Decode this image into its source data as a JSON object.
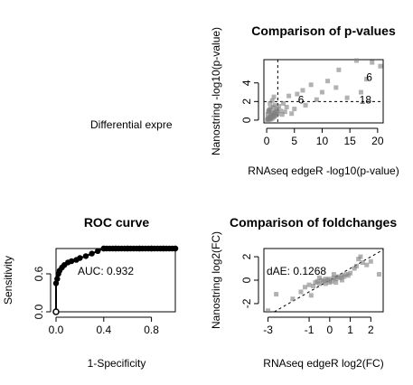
{
  "panels": {
    "text_panel": {
      "label": "Differential expre"
    },
    "pvalues": {
      "title": "Comparison of p-values",
      "xlabel": "RNAseq edgeR -log10(p-value)",
      "ylabel": "Nanostring -log10(p-value)",
      "annotations": [
        {
          "text": "6",
          "x": 18.5,
          "y": 4.6
        },
        {
          "text": "6",
          "x": 6.2,
          "y": 2.2
        },
        {
          "text": "18",
          "x": 17.8,
          "y": 2.2
        }
      ]
    },
    "roc": {
      "title": "ROC curve",
      "xlabel": "1-Specificity",
      "ylabel": "Sensitivity",
      "auc_label": "AUC: 0.932"
    },
    "foldchanges": {
      "title": "Comparison of foldchanges",
      "xlabel": "RNAseq edgeR log2(FC)",
      "ylabel": "Nanostring log2(FC)",
      "annotation": "dAE: 0.1268"
    }
  },
  "chart_data": [
    {
      "type": "scatter",
      "title": "Comparison of p-values",
      "xlabel": "RNAseq edgeR -log10(p-value)",
      "ylabel": "Nanostring -log10(p-value)",
      "xlim": [
        -0.5,
        21
      ],
      "ylim": [
        -0.3,
        6.5
      ],
      "xticks": [
        0,
        5,
        10,
        15,
        20
      ],
      "yticks": [
        0,
        2,
        4
      ],
      "reference_lines": {
        "vertical_x": 2,
        "horizontal_y": 2
      },
      "point_color": "#7f7f7f",
      "points": [
        [
          0.1,
          0.05
        ],
        [
          0.2,
          0.1
        ],
        [
          0.3,
          0.2
        ],
        [
          0.4,
          0.05
        ],
        [
          0.5,
          0.3
        ],
        [
          0.6,
          0.15
        ],
        [
          0.7,
          0.4
        ],
        [
          0.8,
          0.1
        ],
        [
          0.9,
          0.5
        ],
        [
          1.0,
          0.2
        ],
        [
          1.1,
          0.6
        ],
        [
          1.2,
          0.3
        ],
        [
          1.3,
          0.8
        ],
        [
          1.4,
          0.4
        ],
        [
          1.5,
          0.9
        ],
        [
          1.6,
          0.5
        ],
        [
          1.7,
          1.0
        ],
        [
          1.8,
          0.6
        ],
        [
          1.9,
          1.2
        ],
        [
          2.0,
          0.7
        ],
        [
          0.3,
          0.9
        ],
        [
          0.5,
          1.1
        ],
        [
          0.7,
          1.3
        ],
        [
          0.9,
          0.8
        ],
        [
          1.2,
          1.4
        ],
        [
          1.5,
          1.6
        ],
        [
          0.2,
          0.6
        ],
        [
          0.4,
          1.0
        ],
        [
          2.2,
          1.5
        ],
        [
          2.5,
          1.0
        ],
        [
          2.8,
          0.6
        ],
        [
          3.0,
          1.8
        ],
        [
          3.3,
          0.9
        ],
        [
          3.6,
          1.4
        ],
        [
          4.0,
          2.6
        ],
        [
          4.5,
          0.7
        ],
        [
          5.0,
          1.2
        ],
        [
          5.5,
          2.8
        ],
        [
          6.5,
          3.2
        ],
        [
          7.0,
          1.6
        ],
        [
          8.0,
          3.8
        ],
        [
          9.0,
          2.2
        ],
        [
          10.0,
          3.0
        ],
        [
          11.0,
          4.2
        ],
        [
          12.5,
          3.5
        ],
        [
          13.0,
          5.4
        ],
        [
          14.5,
          2.4
        ],
        [
          16.2,
          6.4
        ],
        [
          18.0,
          4.4
        ],
        [
          19.0,
          6.2
        ],
        [
          20.5,
          5.8
        ],
        [
          17.0,
          3.0
        ],
        [
          1.0,
          2.1
        ],
        [
          1.3,
          2.5
        ],
        [
          0.6,
          1.8
        ]
      ]
    },
    {
      "type": "line",
      "title": "ROC curve",
      "xlabel": "1-Specificity",
      "ylabel": "Sensitivity",
      "xlim": [
        0,
        1
      ],
      "ylim": [
        0,
        1
      ],
      "xticks": [
        0.0,
        0.4,
        0.8
      ],
      "yticks": [
        0.0,
        0.6
      ],
      "auc": 0.932,
      "curve": [
        [
          0,
          0
        ],
        [
          0,
          0.45
        ],
        [
          0.01,
          0.52
        ],
        [
          0.02,
          0.6
        ],
        [
          0.03,
          0.65
        ],
        [
          0.05,
          0.7
        ],
        [
          0.07,
          0.74
        ],
        [
          0.1,
          0.78
        ],
        [
          0.13,
          0.8
        ],
        [
          0.17,
          0.82
        ],
        [
          0.2,
          0.85
        ],
        [
          0.25,
          0.88
        ],
        [
          0.3,
          0.92
        ],
        [
          0.35,
          0.96
        ],
        [
          0.4,
          1.0
        ],
        [
          0.5,
          1.0
        ],
        [
          0.6,
          1.0
        ],
        [
          0.7,
          1.0
        ],
        [
          0.8,
          1.0
        ],
        [
          0.9,
          1.0
        ],
        [
          1.0,
          1.0
        ]
      ]
    },
    {
      "type": "scatter",
      "title": "Comparison of foldchanges",
      "xlabel": "RNAseq edgeR log2(FC)",
      "ylabel": "Nanostring log2(FC)",
      "xlim": [
        -3.2,
        2.6
      ],
      "ylim": [
        -2.7,
        2.7
      ],
      "xticks": [
        -3,
        -1,
        0,
        1,
        2
      ],
      "yticks": [
        -2,
        0,
        2
      ],
      "reference_line": "y = x (dashed)",
      "point_color": "#7f7f7f",
      "points": [
        [
          -3.0,
          -2.6
        ],
        [
          -2.6,
          -1.2
        ],
        [
          -1.8,
          -1.6
        ],
        [
          -1.4,
          -1.0
        ],
        [
          -1.2,
          -0.6
        ],
        [
          -1.0,
          -0.4
        ],
        [
          -0.8,
          -0.5
        ],
        [
          -0.7,
          -0.2
        ],
        [
          -0.6,
          -0.1
        ],
        [
          -0.5,
          -0.3
        ],
        [
          -0.4,
          0.0
        ],
        [
          -0.3,
          -0.1
        ],
        [
          -0.2,
          0.1
        ],
        [
          -0.1,
          0.0
        ],
        [
          0.0,
          0.1
        ],
        [
          0.1,
          -0.1
        ],
        [
          0.2,
          0.2
        ],
        [
          0.3,
          0.1
        ],
        [
          0.4,
          0.3
        ],
        [
          0.5,
          0.2
        ],
        [
          0.6,
          0.4
        ],
        [
          0.7,
          0.3
        ],
        [
          0.8,
          0.5
        ],
        [
          0.9,
          0.4
        ],
        [
          1.0,
          0.6
        ],
        [
          0.0,
          -0.2
        ],
        [
          -0.2,
          -0.3
        ],
        [
          0.3,
          -0.2
        ],
        [
          0.6,
          0.0
        ],
        [
          1.2,
          1.0
        ],
        [
          1.4,
          1.8
        ],
        [
          1.6,
          1.5
        ],
        [
          1.8,
          1.3
        ],
        [
          2.0,
          1.6
        ],
        [
          1.5,
          2.0
        ],
        [
          2.4,
          0.5
        ],
        [
          1.3,
          1.2
        ],
        [
          -0.9,
          -1.3
        ],
        [
          0.2,
          0.5
        ],
        [
          -0.5,
          0.2
        ]
      ]
    }
  ]
}
